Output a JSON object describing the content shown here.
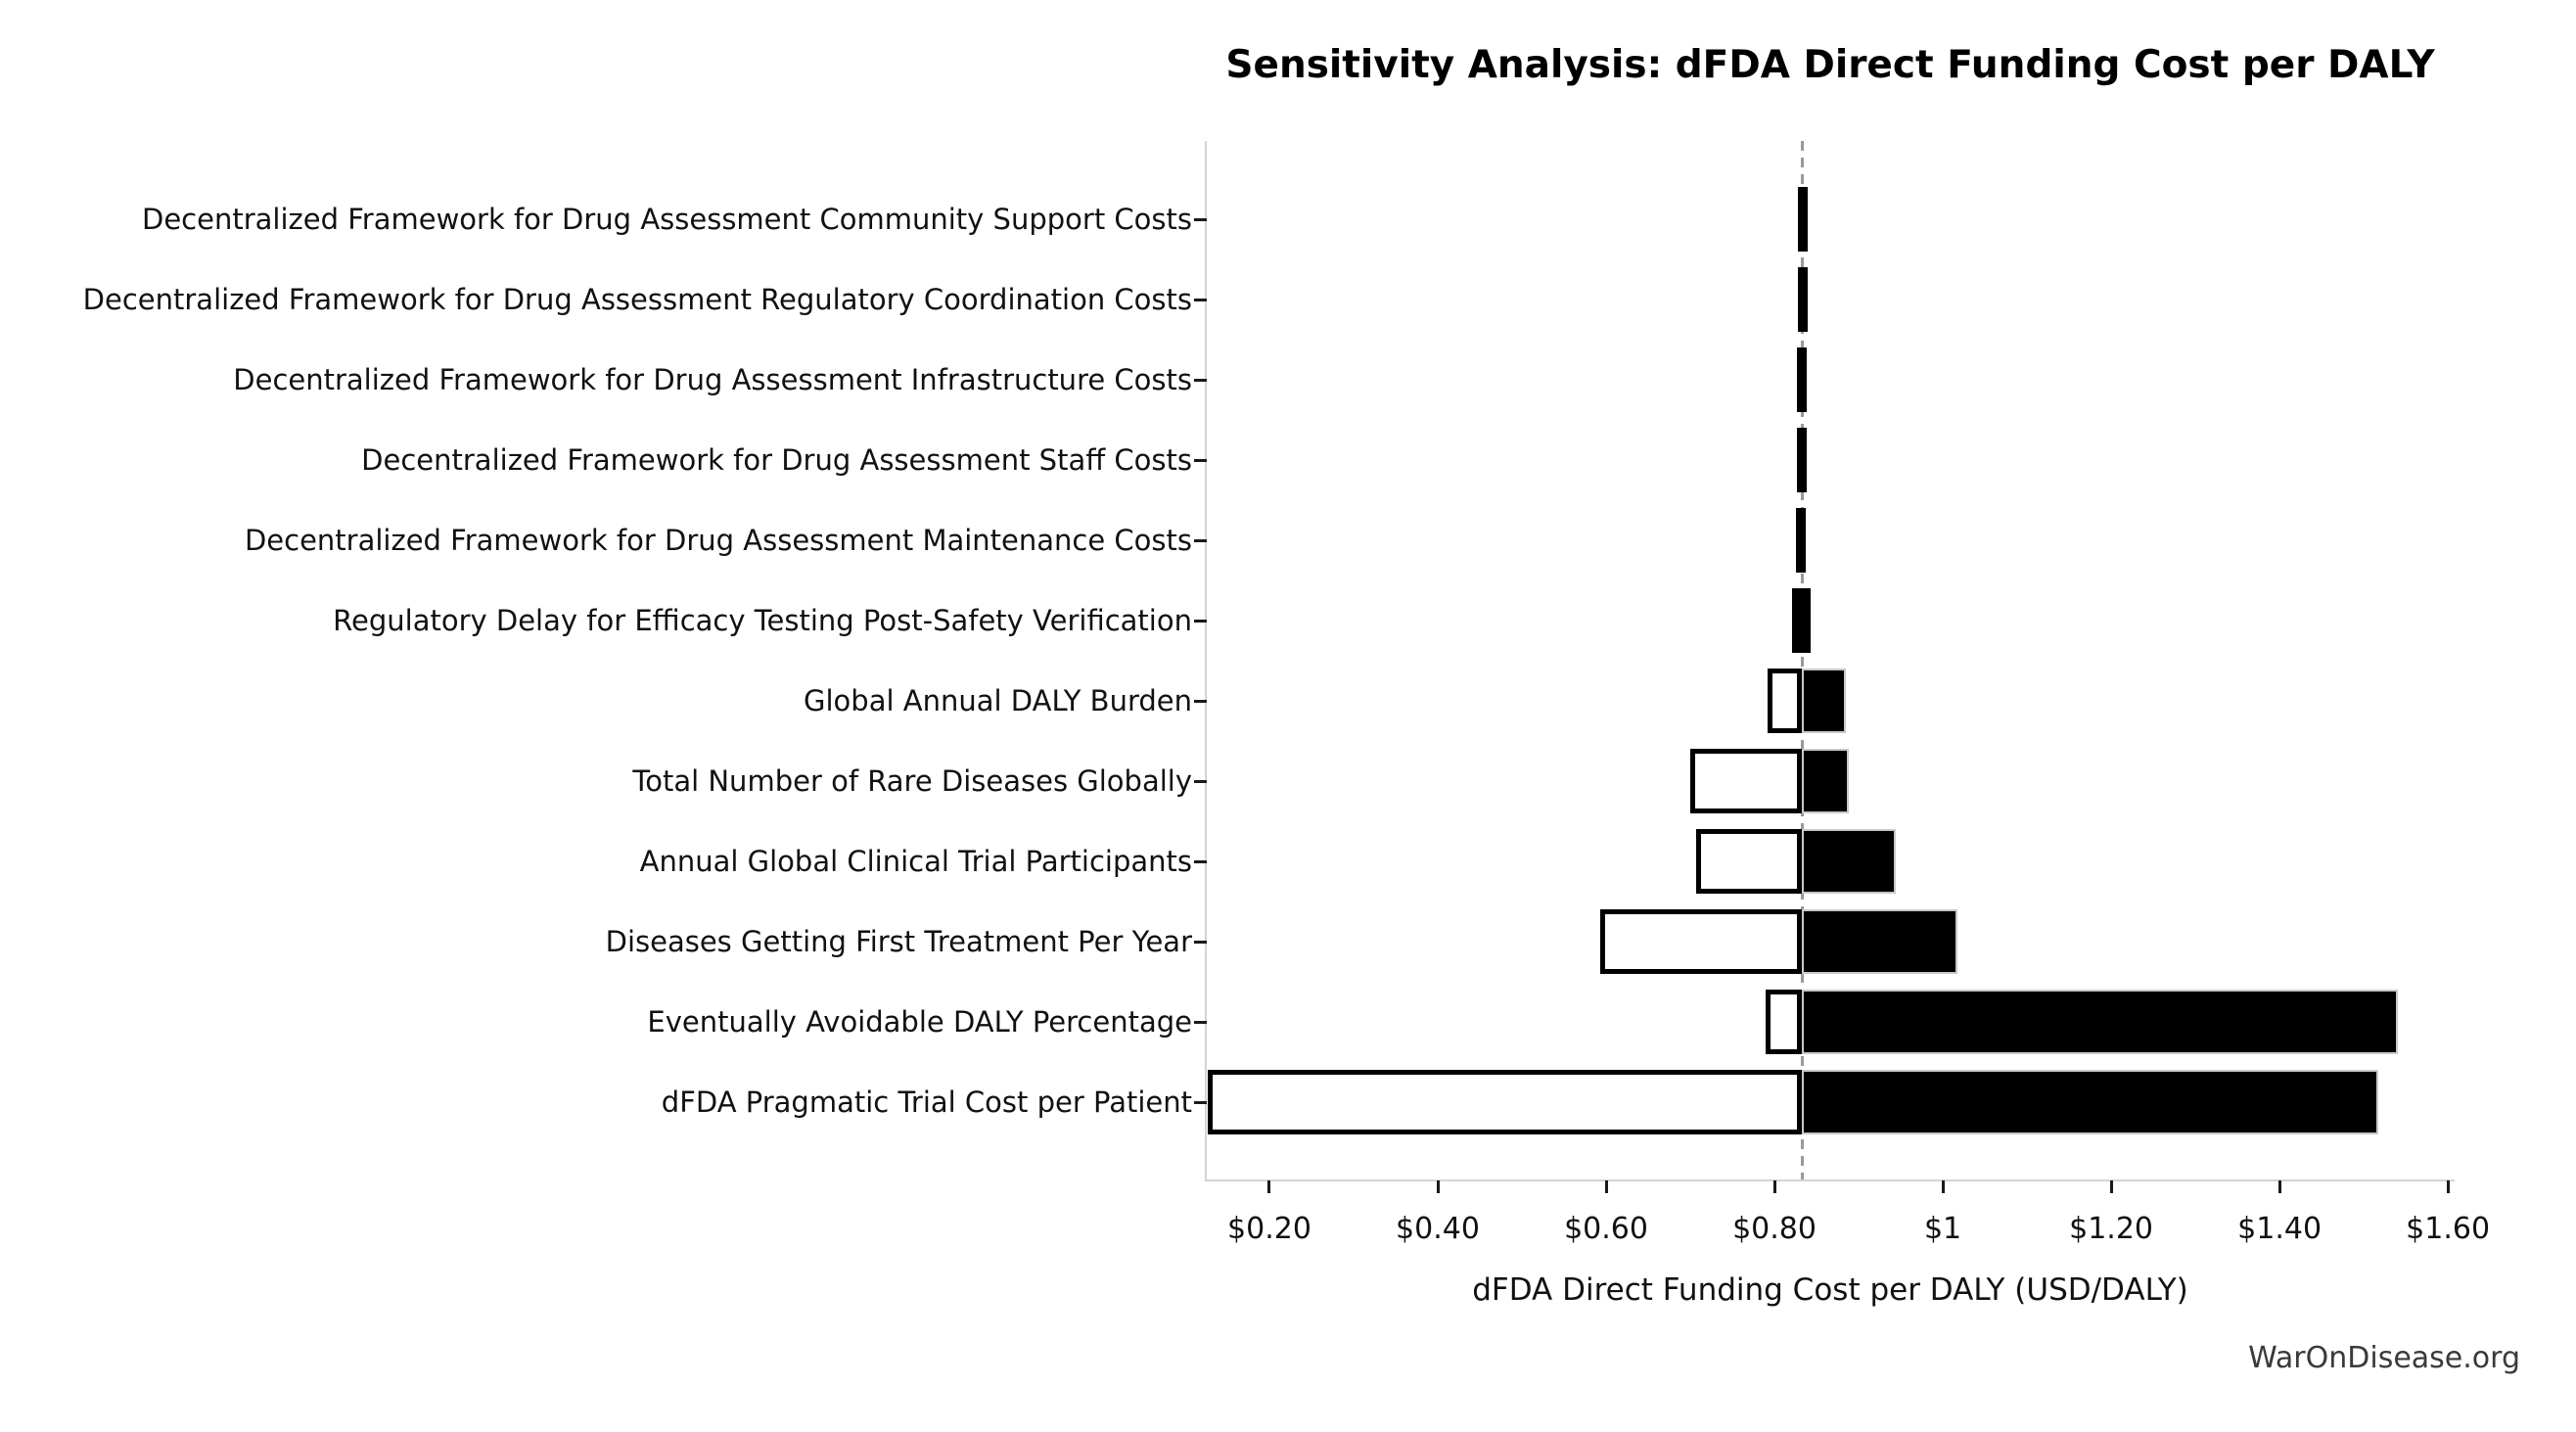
{
  "title": "Sensitivity Analysis: dFDA Direct Funding Cost per DALY",
  "watermark": "WarOnDisease.org",
  "chart_data": {
    "type": "bar",
    "variant": "tornado-sensitivity",
    "title": "Sensitivity Analysis: dFDA Direct Funding Cost per DALY",
    "xlabel": "dFDA Direct Funding Cost per DALY (USD/DALY)",
    "ylabel": "",
    "grid": false,
    "legend": null,
    "baseline_value": 0.833,
    "xlim": [
      0.1256,
      1.608
    ],
    "x_ticks": [
      {
        "value": 0.2,
        "label": "$0.20"
      },
      {
        "value": 0.4,
        "label": "$0.40"
      },
      {
        "value": 0.6,
        "label": "$0.60"
      },
      {
        "value": 0.8,
        "label": "$0.80"
      },
      {
        "value": 1.0,
        "label": "$1"
      },
      {
        "value": 1.2,
        "label": "$1.20"
      },
      {
        "value": 1.4,
        "label": "$1.40"
      },
      {
        "value": 1.6,
        "label": "$1.60"
      }
    ],
    "rows": [
      {
        "label": "Decentralized Framework for Drug Assessment Community Support Costs",
        "low": 0.828,
        "high": 0.836
      },
      {
        "label": "Decentralized Framework for Drug Assessment Regulatory Coordination Costs",
        "low": 0.828,
        "high": 0.836
      },
      {
        "label": "Decentralized Framework for Drug Assessment Infrastructure Costs",
        "low": 0.827,
        "high": 0.837
      },
      {
        "label": "Decentralized Framework for Drug Assessment Staff Costs",
        "low": 0.827,
        "high": 0.837
      },
      {
        "label": "Decentralized Framework for Drug Assessment Maintenance Costs",
        "low": 0.826,
        "high": 0.837
      },
      {
        "label": "Regulatory Delay for Efficacy Testing Post-Safety Verification",
        "low": 0.821,
        "high": 0.843
      },
      {
        "label": "Global Annual DALY Burden",
        "low": 0.792,
        "high": 0.885
      },
      {
        "label": "Total Number of Rare Diseases Globally",
        "low": 0.7,
        "high": 0.888
      },
      {
        "label": "Annual Global Clinical Trial Participants",
        "low": 0.707,
        "high": 0.944
      },
      {
        "label": "Diseases Getting First Treatment Per Year",
        "low": 0.593,
        "high": 1.017
      },
      {
        "label": "Eventually Avoidable DALY Percentage",
        "low": 0.79,
        "high": 1.541
      },
      {
        "label": "dFDA Pragmatic Trial Cost per Patient",
        "low": 0.127,
        "high": 1.517
      }
    ],
    "colors": {
      "low_bar_fill": "#ffffff",
      "high_bar_fill": "#000000",
      "bar_edge": "#000000",
      "baseline_dash": "#999999",
      "spine": "#d4d4d4",
      "tick_mark": "#1a1a1a",
      "text": "#111111",
      "watermark": "#3a3a3a",
      "background": "#ffffff"
    }
  }
}
